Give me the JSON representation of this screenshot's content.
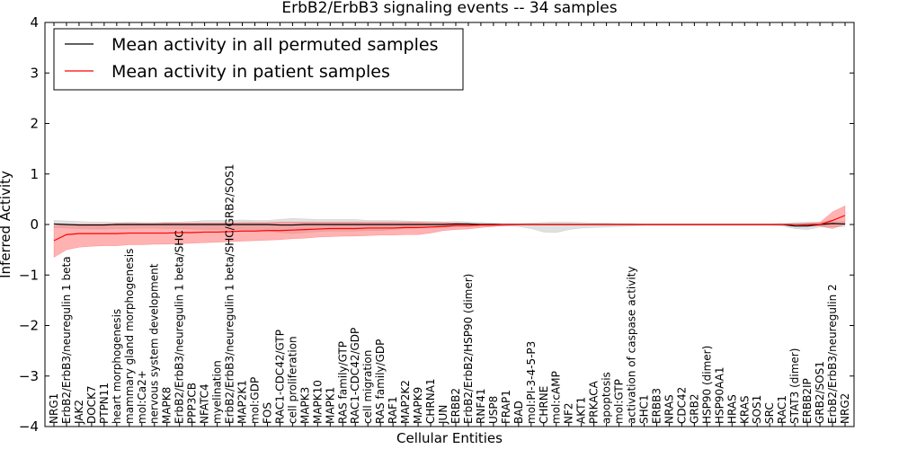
{
  "chart_data": {
    "type": "line",
    "title": "ErbB2/ErbB3 signaling events -- 34 samples",
    "xlabel": "Cellular Entities",
    "ylabel": "Inferred Activity",
    "ylim": [
      -4,
      4
    ],
    "yticks": [
      -4,
      -3,
      -2,
      -1,
      0,
      1,
      2,
      3,
      4
    ],
    "legend_position": "top-left",
    "categories": [
      "NRG1",
      "ErbB2/ErbB3/neuregulin 1 beta",
      "JAK2",
      "DOCK7",
      "PTPN11",
      "heart morphogenesis",
      "mammary gland morphogenesis",
      "mol:Ca2+",
      "nervous system development",
      "MAPK8",
      "ErbB2/ErbB3/neuregulin 1 beta/SHC",
      "PPP3CB",
      "NFATC4",
      "myelination",
      "ErbB2/ErbB3/neuregulin 1 beta/SHC/GRB2/SOS1",
      "MAP2K1",
      "mol:GDP",
      "FOS",
      "RAC1-CDC42/GTP",
      "cell proliferation",
      "MAPK3",
      "MAPK10",
      "MAPK1",
      "RAS family/GTP",
      "RAC1-CDC42/GDP",
      "cell migration",
      "RAS family/GDP",
      "RAF1",
      "MAP2K2",
      "MAPK9",
      "CHRNA1",
      "JUN",
      "ERBB2",
      "ErbB2/ErbB2/HSP90 (dimer)",
      "RNF41",
      "USP8",
      "FRAP1",
      "BAD",
      "mol:PI-3-4-5-P3",
      "CHRNE",
      "mol:cAMP",
      "NF2",
      "AKT1",
      "PRKACA",
      "apoptosis",
      "mol:GTP",
      "activation of caspase activity",
      "SHC1",
      "ERBB3",
      "NRAS",
      "CDC42",
      "GRB2",
      "HSP90 (dimer)",
      "HSP90AA1",
      "HRAS",
      "KRAS",
      "SOS1",
      "SRC",
      "RAC1",
      "STAT3 (dimer)",
      "ERBB2IP",
      "GRB2/SOS1",
      "ErbB2/ErbB3/neuregulin 2",
      "NRG2"
    ],
    "series": [
      {
        "name": "Mean activity in all permuted samples",
        "color": "#000000",
        "band_color": "#bbbbbb",
        "values": [
          0.01,
          0.0,
          -0.01,
          -0.01,
          -0.01,
          0.0,
          0.0,
          0.0,
          0.0,
          0.0,
          0.0,
          0.0,
          0.0,
          0.0,
          0.0,
          0.0,
          0.0,
          0.0,
          -0.01,
          -0.01,
          0.0,
          0.0,
          0.0,
          0.0,
          0.0,
          0.0,
          0.0,
          0.0,
          0.0,
          0.0,
          0.0,
          0.0,
          0.01,
          0.01,
          0.0,
          0.0,
          0.0,
          0.0,
          0.0,
          0.0,
          0.0,
          0.0,
          0.0,
          0.0,
          0.0,
          0.0,
          0.0,
          0.0,
          0.0,
          0.0,
          0.0,
          0.0,
          0.0,
          0.0,
          0.0,
          0.0,
          0.0,
          0.0,
          0.0,
          -0.03,
          -0.03,
          0.0,
          0.02,
          0.01
        ],
        "band_upper": [
          0.08,
          0.07,
          0.06,
          0.05,
          0.05,
          0.04,
          0.05,
          0.04,
          0.04,
          0.05,
          0.05,
          0.06,
          0.08,
          0.08,
          0.08,
          0.09,
          0.08,
          0.08,
          0.1,
          0.12,
          0.11,
          0.1,
          0.1,
          0.1,
          0.1,
          0.08,
          0.08,
          0.08,
          0.07,
          0.06,
          0.06,
          0.05,
          0.06,
          0.05,
          0.04,
          0.03,
          0.02,
          0.02,
          0.03,
          0.04,
          0.05,
          0.05,
          0.04,
          0.03,
          0.03,
          0.02,
          0.02,
          0.01,
          0.01,
          0.01,
          0.01,
          0.01,
          0.01,
          0.01,
          0.01,
          0.01,
          0.01,
          0.01,
          0.02,
          0.04,
          0.05,
          0.05,
          0.06,
          0.06
        ],
        "band_lower": [
          -0.06,
          -0.07,
          -0.08,
          -0.09,
          -0.09,
          -0.08,
          -0.08,
          -0.07,
          -0.07,
          -0.08,
          -0.08,
          -0.09,
          -0.1,
          -0.1,
          -0.1,
          -0.11,
          -0.11,
          -0.12,
          -0.16,
          -0.18,
          -0.16,
          -0.14,
          -0.13,
          -0.13,
          -0.13,
          -0.12,
          -0.12,
          -0.1,
          -0.08,
          -0.07,
          -0.06,
          -0.05,
          -0.04,
          -0.04,
          -0.03,
          -0.03,
          -0.03,
          -0.04,
          -0.08,
          -0.15,
          -0.16,
          -0.1,
          -0.07,
          -0.06,
          -0.05,
          -0.04,
          -0.03,
          -0.02,
          -0.02,
          -0.02,
          -0.02,
          -0.02,
          -0.02,
          -0.02,
          -0.02,
          -0.02,
          -0.02,
          -0.02,
          -0.03,
          -0.08,
          -0.1,
          -0.05,
          -0.05,
          -0.04
        ]
      },
      {
        "name": "Mean activity in patient samples",
        "color": "#ff0000",
        "band_color": "#ff6666",
        "values": [
          -0.32,
          -0.2,
          -0.18,
          -0.18,
          -0.18,
          -0.18,
          -0.17,
          -0.17,
          -0.17,
          -0.17,
          -0.16,
          -0.16,
          -0.15,
          -0.15,
          -0.14,
          -0.13,
          -0.13,
          -0.12,
          -0.12,
          -0.11,
          -0.1,
          -0.09,
          -0.08,
          -0.08,
          -0.08,
          -0.07,
          -0.07,
          -0.07,
          -0.06,
          -0.06,
          -0.05,
          -0.04,
          -0.02,
          -0.02,
          -0.01,
          -0.01,
          0.0,
          0.0,
          0.0,
          0.0,
          0.0,
          0.0,
          0.0,
          0.0,
          0.0,
          0.0,
          0.0,
          0.0,
          0.0,
          0.0,
          0.0,
          0.0,
          0.0,
          0.0,
          0.0,
          0.0,
          0.0,
          0.0,
          0.0,
          0.0,
          0.0,
          0.0,
          0.08,
          0.18
        ],
        "band_upper": [
          -0.02,
          0.0,
          0.01,
          0.01,
          0.01,
          0.02,
          0.02,
          0.02,
          0.02,
          0.03,
          0.03,
          0.03,
          0.03,
          0.03,
          0.03,
          0.04,
          0.04,
          0.04,
          0.05,
          0.05,
          0.05,
          0.05,
          0.05,
          0.05,
          0.05,
          0.05,
          0.05,
          0.05,
          0.05,
          0.05,
          0.04,
          0.04,
          0.03,
          0.02,
          0.01,
          0.01,
          0.0,
          0.0,
          0.0,
          0.0,
          0.0,
          0.0,
          0.0,
          0.0,
          0.0,
          0.0,
          0.0,
          0.0,
          0.0,
          0.0,
          0.0,
          0.0,
          0.0,
          0.0,
          0.0,
          0.0,
          0.0,
          0.0,
          0.0,
          0.0,
          0.02,
          0.04,
          0.25,
          0.37
        ],
        "band_lower": [
          -0.65,
          -0.5,
          -0.45,
          -0.43,
          -0.42,
          -0.42,
          -0.4,
          -0.4,
          -0.39,
          -0.39,
          -0.38,
          -0.37,
          -0.36,
          -0.35,
          -0.34,
          -0.33,
          -0.32,
          -0.31,
          -0.3,
          -0.28,
          -0.27,
          -0.25,
          -0.24,
          -0.23,
          -0.23,
          -0.22,
          -0.21,
          -0.21,
          -0.2,
          -0.2,
          -0.17,
          -0.12,
          -0.1,
          -0.09,
          -0.06,
          -0.04,
          -0.02,
          -0.01,
          0.0,
          0.0,
          0.0,
          0.0,
          0.0,
          0.0,
          0.0,
          0.0,
          0.0,
          0.0,
          0.0,
          0.0,
          0.0,
          0.0,
          0.0,
          0.0,
          0.0,
          0.0,
          0.0,
          0.0,
          0.0,
          0.0,
          -0.02,
          -0.03,
          -0.08,
          0.0
        ]
      }
    ]
  }
}
